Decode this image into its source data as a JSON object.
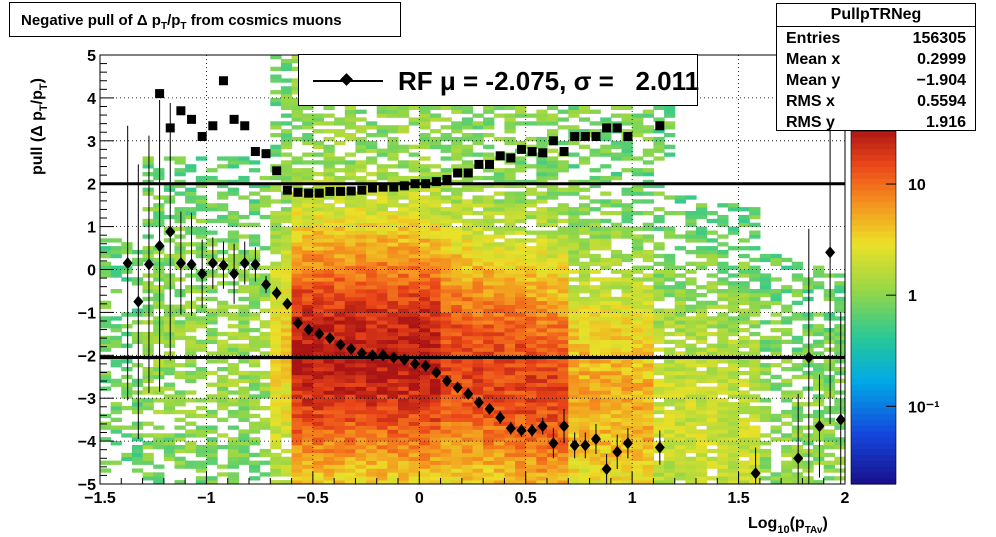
{
  "title": {
    "main": "Negative pull of Δ p",
    "sub1": "T",
    "mid": "/p",
    "sub2": "T",
    "tail": " from cosmics muons"
  },
  "stats": {
    "name": "PullpTRNeg",
    "rows": [
      {
        "key": "Entries",
        "value": "156305"
      },
      {
        "key": "Mean x",
        "value": "0.2999"
      },
      {
        "key": "Mean y",
        "value": "−1.904"
      },
      {
        "key": "RMS x",
        "value": "0.5594"
      },
      {
        "key": "RMS y",
        "value": "1.916"
      }
    ]
  },
  "legend": {
    "text": "RF μ = -2.075, σ =   2.011"
  },
  "chart_data": {
    "type": "heatmap",
    "title": "Negative pull of Δ pT/pT from cosmics muons",
    "xlabel": "Log10(pTAv)",
    "ylabel": "pull (Δ pT/pT)",
    "xlim": [
      -1.5,
      2
    ],
    "ylim": [
      -5,
      5
    ],
    "xticks": [
      -1.5,
      -1,
      -0.5,
      0,
      0.5,
      1,
      1.5,
      2
    ],
    "xtick_labels": [
      "−1.5",
      "−1",
      "−0.5",
      "0",
      "0.5",
      "1",
      "1.5",
      "2"
    ],
    "yticks": [
      -5,
      -4,
      -3,
      -2,
      -1,
      0,
      1,
      2,
      3,
      4,
      5
    ],
    "ytick_labels": [
      "−5",
      "−4",
      "−3",
      "−2",
      "−1",
      "0",
      "1",
      "2",
      "3",
      "4",
      "5"
    ],
    "zscale": "log",
    "colorbar_labels": [
      {
        "value": 10,
        "label": "10"
      },
      {
        "value": 1,
        "label": "1"
      },
      {
        "value": 0.1,
        "label": "10⁻¹"
      }
    ],
    "grid": true,
    "horizontal_lines": [
      2.0,
      -2.05
    ],
    "mean_series": {
      "marker": "diamond",
      "x": [
        -1.37,
        -1.32,
        -1.27,
        -1.22,
        -1.17,
        -1.12,
        -1.07,
        -1.02,
        -0.97,
        -0.92,
        -0.87,
        -0.82,
        -0.77,
        -0.72,
        -0.67,
        -0.62,
        -0.57,
        -0.52,
        -0.47,
        -0.42,
        -0.37,
        -0.32,
        -0.27,
        -0.22,
        -0.17,
        -0.12,
        -0.07,
        -0.02,
        0.03,
        0.08,
        0.13,
        0.18,
        0.23,
        0.28,
        0.33,
        0.38,
        0.43,
        0.48,
        0.53,
        0.58,
        0.63,
        0.68,
        0.73,
        0.78,
        0.83,
        0.88,
        0.93,
        0.98,
        1.13,
        1.58,
        1.78,
        1.83,
        1.88,
        1.93,
        1.98
      ],
      "y": [
        0.15,
        -0.75,
        0.12,
        0.55,
        0.88,
        0.15,
        0.12,
        -0.1,
        0.15,
        0.1,
        -0.1,
        0.15,
        0.12,
        -0.35,
        -0.55,
        -0.8,
        -1.25,
        -1.4,
        -1.5,
        -1.6,
        -1.75,
        -1.85,
        -1.95,
        -2.0,
        -2.0,
        -2.05,
        -2.1,
        -2.2,
        -2.25,
        -2.4,
        -2.6,
        -2.75,
        -2.9,
        -3.1,
        -3.25,
        -3.45,
        -3.7,
        -3.75,
        -3.75,
        -3.65,
        -4.05,
        -3.65,
        -4.1,
        -4.1,
        -3.95,
        -4.65,
        -4.25,
        -4.05,
        -4.15,
        -4.75,
        -4.4,
        -2.05,
        -3.65,
        0.4,
        -3.5
      ],
      "yerr": [
        3.2,
        3.2,
        3.0,
        3.4,
        3.0,
        1.2,
        1.2,
        0.8,
        0.6,
        0.55,
        0.7,
        0.5,
        0.4,
        0.2,
        0.15,
        0.1,
        0.08,
        0.06,
        0.05,
        0.05,
        0.05,
        0.05,
        0.05,
        0.05,
        0.05,
        0.05,
        0.05,
        0.05,
        0.05,
        0.05,
        0.06,
        0.06,
        0.07,
        0.08,
        0.1,
        0.15,
        0.15,
        0.15,
        0.15,
        0.2,
        0.35,
        0.4,
        0.3,
        0.3,
        0.35,
        0.35,
        0.4,
        0.35,
        0.4,
        0.6,
        1.5,
        3.0,
        1.2,
        4.0,
        2.5
      ]
    },
    "rms_series": {
      "marker": "square",
      "x": [
        -1.22,
        -1.17,
        -1.12,
        -1.07,
        -1.02,
        -0.97,
        -0.92,
        -0.87,
        -0.82,
        -0.77,
        -0.72,
        -0.67,
        -0.62,
        -0.57,
        -0.52,
        -0.47,
        -0.42,
        -0.37,
        -0.32,
        -0.27,
        -0.22,
        -0.17,
        -0.12,
        -0.07,
        -0.02,
        0.03,
        0.08,
        0.13,
        0.18,
        0.23,
        0.28,
        0.33,
        0.38,
        0.43,
        0.48,
        0.53,
        0.58,
        0.63,
        0.68,
        0.73,
        0.78,
        0.83,
        0.88,
        0.93,
        0.98,
        1.13
      ],
      "y": [
        4.1,
        3.3,
        3.7,
        3.5,
        3.1,
        3.35,
        4.4,
        3.5,
        3.35,
        2.75,
        2.7,
        2.3,
        1.85,
        1.8,
        1.78,
        1.78,
        1.82,
        1.82,
        1.83,
        1.85,
        1.9,
        1.92,
        1.92,
        1.95,
        2.0,
        2.0,
        2.05,
        2.1,
        2.25,
        2.25,
        2.45,
        2.45,
        2.65,
        2.6,
        2.8,
        2.75,
        2.72,
        3.0,
        2.75,
        3.1,
        3.1,
        3.1,
        3.3,
        3.3,
        3.1,
        3.35
      ]
    }
  }
}
